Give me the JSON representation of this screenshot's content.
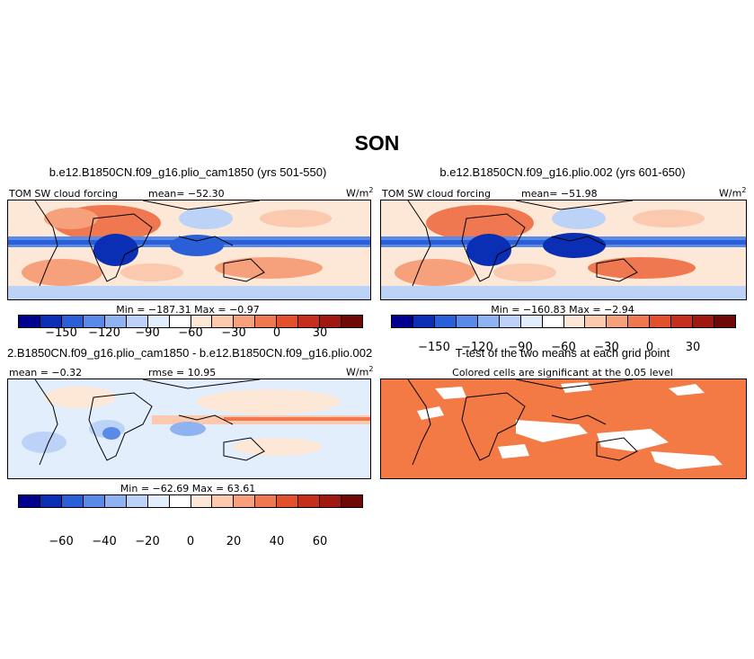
{
  "figure": {
    "title": "SON"
  },
  "panels": [
    {
      "title": "b.e12.B1850CN.f09_g16.plio_cam1850 (yrs 501-550)",
      "left_label": "TOM SW cloud forcing",
      "center_label": "mean= −52.30",
      "units_base": "W/m",
      "units_exp": "2",
      "minmax": "Min = −187.31  Max =   −0.97"
    },
    {
      "title": "b.e12.B1850CN.f09_g16.plio.002 (yrs 601-650)",
      "left_label": "TOM SW cloud forcing",
      "center_label": "mean= −51.98",
      "units_base": "W/m",
      "units_exp": "2",
      "minmax": "Min = −160.83  Max =   −2.94"
    },
    {
      "title": "2.B1850CN.f09_g16.plio_cam1850 - b.e12.B1850CN.f09_g16.plio.002",
      "left_label": "mean =  −0.32",
      "center_label": "rmse =  10.95",
      "units_base": "W/m",
      "units_exp": "2",
      "minmax": "Min = −62.69  Max =  63.61"
    },
    {
      "title": "T-test of the two means at each grid point",
      "subtitle": "Colored cells are significant at the 0.05 level"
    }
  ],
  "colorbar_abs": {
    "colors": [
      "#00008f",
      "#0a2fb4",
      "#2a5fd8",
      "#5a8ae8",
      "#8fb2f0",
      "#bcd3f7",
      "#e3eefc",
      "#ffffff",
      "#fde8d8",
      "#fbc9ad",
      "#f7a07c",
      "#f07850",
      "#e2502e",
      "#c5301c",
      "#a01812",
      "#700808"
    ],
    "ticks": [
      "−150",
      "−120",
      "−90",
      "−60",
      "−30",
      "0",
      "30"
    ]
  },
  "colorbar_diff": {
    "colors": [
      "#00008f",
      "#0a2fb4",
      "#2a5fd8",
      "#5a8ae8",
      "#8fb2f0",
      "#bcd3f7",
      "#e3eefc",
      "#ffffff",
      "#fde8d8",
      "#fbc9ad",
      "#f7a07c",
      "#f07850",
      "#e2502e",
      "#c5301c",
      "#a01812",
      "#700808"
    ],
    "ticks": [
      "−60",
      "−40",
      "−20",
      "0",
      "20",
      "40",
      "60"
    ]
  },
  "colors": {
    "significant": "#f47a45",
    "land_outline": "#000000"
  }
}
